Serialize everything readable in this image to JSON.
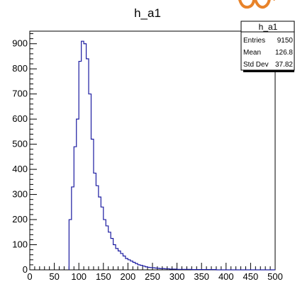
{
  "chart_data": {
    "type": "bar",
    "title": "h_a1",
    "xlim": [
      0,
      500
    ],
    "ylim": [
      0,
      950
    ],
    "x_ticks": [
      0,
      50,
      100,
      150,
      200,
      250,
      300,
      350,
      400,
      450,
      500
    ],
    "y_ticks": [
      0,
      100,
      200,
      300,
      400,
      500,
      600,
      700,
      800,
      900
    ],
    "bin_width": 5,
    "bin_start": 80,
    "series": [
      {
        "color": "#1a1aa0",
        "values": [
          200,
          330,
          490,
          600,
          830,
          910,
          900,
          840,
          700,
          520,
          385,
          335,
          290,
          250,
          200,
          175,
          150,
          125,
          100,
          85,
          75,
          65,
          55,
          45,
          40,
          35,
          30,
          25,
          20,
          18,
          15,
          12,
          10,
          9,
          8,
          7,
          6,
          5,
          5,
          4,
          4,
          3,
          3,
          3,
          2,
          2,
          2,
          2,
          2,
          2,
          1,
          1,
          1,
          1,
          1,
          1,
          1,
          1,
          1,
          1
        ]
      }
    ],
    "stats_box": {
      "title": "h_a1",
      "rows": [
        {
          "label": "Entries",
          "value": "9150"
        },
        {
          "label": "Mean",
          "value": "126.8"
        },
        {
          "label": "Std Dev",
          "value": "37.82"
        }
      ]
    }
  },
  "colors": {
    "line": "#1a1aa0",
    "axis": "#000000",
    "logo": "#e8832a"
  }
}
